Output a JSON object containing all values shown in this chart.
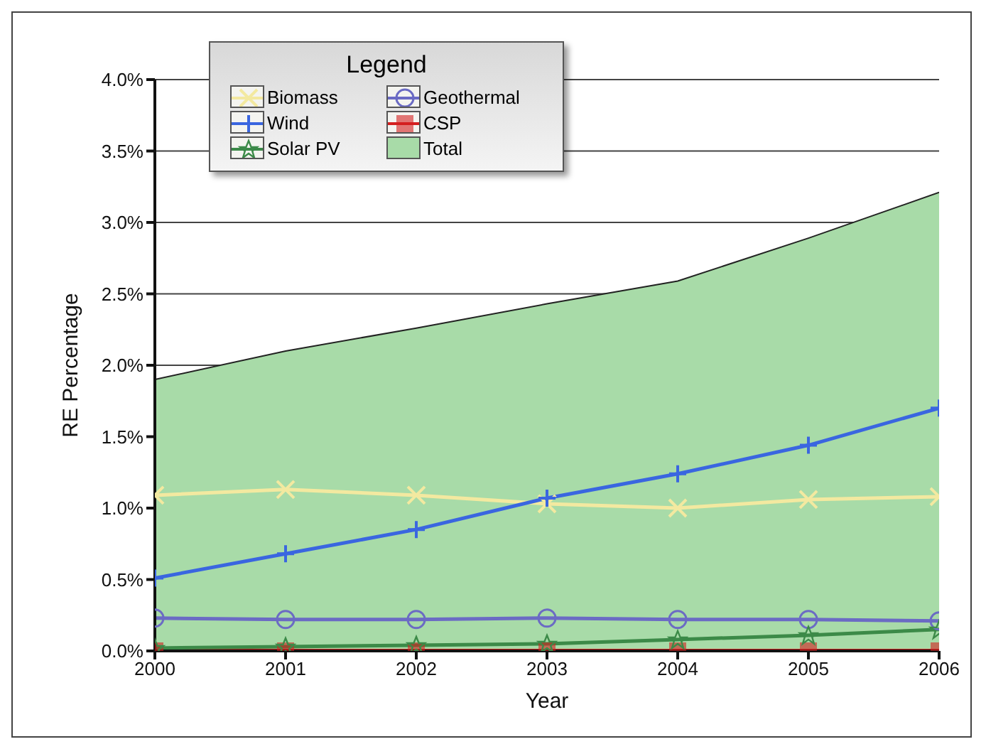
{
  "chart_data": {
    "type": "line",
    "xlabel": "Year",
    "ylabel": "RE Percentage",
    "legend_title": "Legend",
    "legend": "top left",
    "grid": "y",
    "x": [
      2000,
      2001,
      2002,
      2003,
      2004,
      2005,
      2006
    ],
    "xlim": [
      2000,
      2006
    ],
    "xticks": [
      2000,
      2001,
      2002,
      2003,
      2004,
      2005,
      2006
    ],
    "ylim": [
      0,
      4
    ],
    "yticks": [
      {
        "value": 0,
        "label": "0.0%"
      },
      {
        "value": 0.5,
        "label": "0.5%"
      },
      {
        "value": 1,
        "label": "1.0%"
      },
      {
        "value": 1.5,
        "label": "1.5%"
      },
      {
        "value": 2,
        "label": "2.0%"
      },
      {
        "value": 2.5,
        "label": "2.5%"
      },
      {
        "value": 3,
        "label": "3.0%"
      },
      {
        "value": 3.5,
        "label": "3.5%"
      },
      {
        "value": 4,
        "label": "4.0%"
      }
    ],
    "series": [
      {
        "name": "Biomass",
        "color": "#f3e9a0",
        "marker": "cross",
        "values": [
          1.09,
          1.13,
          1.09,
          1.03,
          1.0,
          1.06,
          1.08
        ]
      },
      {
        "name": "Geothermal",
        "color": "#6b6bc4",
        "marker": "circle",
        "values": [
          0.23,
          0.22,
          0.22,
          0.23,
          0.22,
          0.22,
          0.21
        ]
      },
      {
        "name": "Wind",
        "color": "#3a66e0",
        "marker": "plus",
        "values": [
          0.51,
          0.68,
          0.85,
          1.07,
          1.24,
          1.44,
          1.7
        ]
      },
      {
        "name": "CSP",
        "color": "#d42020",
        "marker": "square",
        "values": [
          0,
          0,
          0,
          0,
          0,
          0,
          0
        ]
      },
      {
        "name": "Solar PV",
        "color": "#3c8a48",
        "marker": "star",
        "values": [
          0.02,
          0.03,
          0.04,
          0.05,
          0.08,
          0.11,
          0.15
        ]
      },
      {
        "name": "Total",
        "type": "area",
        "color": "#a8dba8",
        "values": [
          1.9,
          2.1,
          2.26,
          2.43,
          2.59,
          2.89,
          3.21
        ]
      }
    ]
  }
}
